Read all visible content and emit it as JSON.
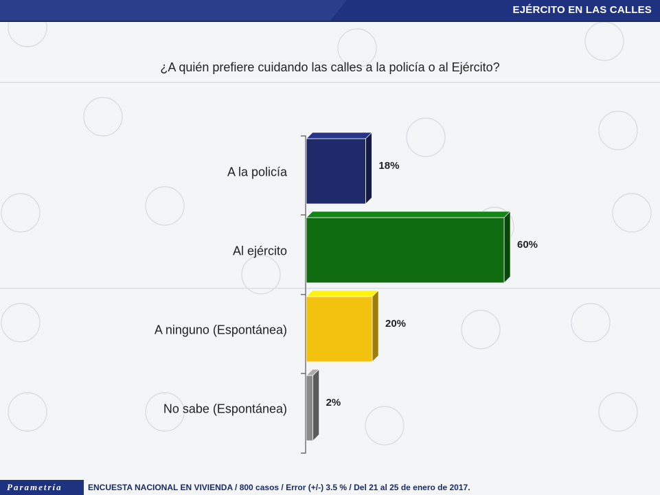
{
  "header": {
    "title": "EJÉRCITO EN LAS CALLES"
  },
  "question": "¿A quién prefiere cuidando las calles a la policía o al Ejército?",
  "brand": {
    "name": "Parametría"
  },
  "footer": {
    "note": "ENCUESTA NACIONAL EN VIVIENDA / 800 casos / Error (+/-) 3.5 % / Del 21 al 25 de enero de 2017."
  },
  "colors": {
    "accent": "#1e3280",
    "policia": "#1f2a6b",
    "ejercito": "#0e6b10",
    "ninguno": "#f2c20e",
    "nosabe": "#8a8a8a"
  },
  "chart_data": {
    "type": "bar",
    "orientation": "horizontal",
    "categories": [
      "A la policía",
      "Al ejército",
      "A ninguno (Espontánea)",
      "No sabe (Espontánea)"
    ],
    "values": [
      18,
      60,
      20,
      2
    ],
    "value_labels": [
      "18%",
      "60%",
      "20%",
      "2%"
    ],
    "unit": "%",
    "xlim": [
      0,
      100
    ],
    "grid": false,
    "legend": "none"
  }
}
